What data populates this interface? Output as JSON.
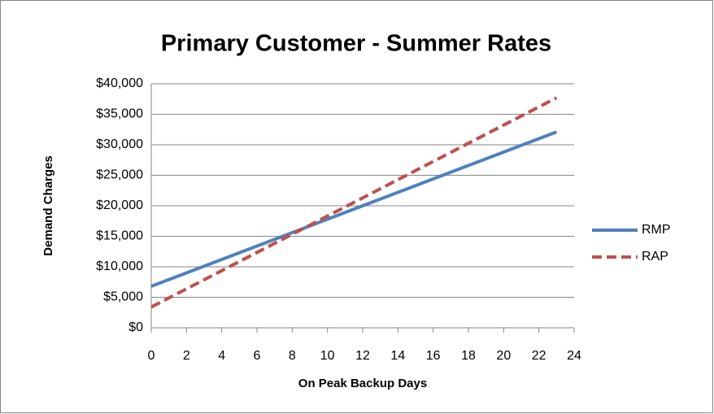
{
  "chart_data": {
    "type": "line",
    "title": "Primary Customer - Summer Rates",
    "x_label": "On Peak Backup Days",
    "y_label": "Demand Charges",
    "x": [
      0,
      23
    ],
    "series": [
      {
        "name": "RMP",
        "color": "#4f81bd",
        "dash": false,
        "values": [
          6800,
          32100
        ]
      },
      {
        "name": "RAP",
        "color": "#c0504d",
        "dash": true,
        "values": [
          3400,
          37700
        ]
      }
    ],
    "xlim": [
      0,
      24
    ],
    "xticks": [
      0,
      2,
      4,
      6,
      8,
      10,
      12,
      14,
      16,
      18,
      20,
      22,
      24
    ],
    "ylim": [
      0,
      40000
    ],
    "yticks": [
      {
        "value": 0,
        "label": "$0"
      },
      {
        "value": 5000,
        "label": "$5,000"
      },
      {
        "value": 10000,
        "label": "$10,000"
      },
      {
        "value": 15000,
        "label": "$15,000"
      },
      {
        "value": 20000,
        "label": "$20,000"
      },
      {
        "value": 25000,
        "label": "$25,000"
      },
      {
        "value": 30000,
        "label": "$30,000"
      },
      {
        "value": 35000,
        "label": "$35,000"
      },
      {
        "value": 40000,
        "label": "$40,000"
      }
    ],
    "grid": true,
    "legend": "right"
  }
}
